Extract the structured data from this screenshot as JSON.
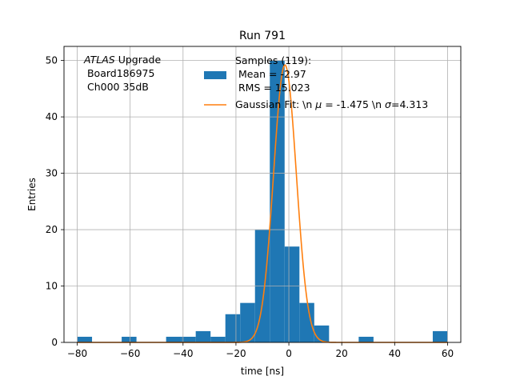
{
  "chart_data": {
    "type": "bar",
    "title": "Run 791",
    "xlabel": "time [ns]",
    "ylabel": "Entries",
    "xlim": [
      -85,
      65
    ],
    "ylim": [
      0,
      52.5
    ],
    "xticks": [
      -80,
      -60,
      -40,
      -20,
      0,
      20,
      40,
      60
    ],
    "yticks": [
      0,
      10,
      20,
      30,
      40,
      50
    ],
    "grid": true,
    "legend_position": "top-right",
    "histogram": {
      "name": "Samples (119):\n Mean = -2.97\n RMS = 15.023",
      "color": "#1f77b4",
      "bin_width": 5.6,
      "bins": [
        {
          "x0": -80,
          "count": 1
        },
        {
          "x0": -63.2,
          "count": 1
        },
        {
          "x0": -46.4,
          "count": 1
        },
        {
          "x0": -40.8,
          "count": 1
        },
        {
          "x0": -35.2,
          "count": 2
        },
        {
          "x0": -29.6,
          "count": 1
        },
        {
          "x0": -24.0,
          "count": 5
        },
        {
          "x0": -18.4,
          "count": 7
        },
        {
          "x0": -12.8,
          "count": 20
        },
        {
          "x0": -7.2,
          "count": 50
        },
        {
          "x0": -1.6,
          "count": 17
        },
        {
          "x0": 4.0,
          "count": 7
        },
        {
          "x0": 9.6,
          "count": 3
        },
        {
          "x0": 26.4,
          "count": 1
        },
        {
          "x0": 54.4,
          "count": 2
        }
      ]
    },
    "fit": {
      "name": "Gaussian Fit: \\n $\\mu$ = -1.475 \\n $\\sigma$=4.313",
      "color": "#ff7f0e",
      "mu": -1.475,
      "sigma": 4.313,
      "amplitude": 49.2
    }
  },
  "annotation": {
    "atlas": "ATLAS",
    "upgrade": " Upgrade",
    "line2": " Board186975",
    "line3": " Ch000 35dB"
  },
  "legend": {
    "samples_line1": "Samples (119):",
    "samples_line2": " Mean = -2.97",
    "samples_line3": " RMS = 15.023",
    "fit_label_pre": "Gaussian Fit: \\n ",
    "fit_mu_sym": "μ",
    "fit_mid": " = -1.475 \\n ",
    "fit_sigma_sym": "σ",
    "fit_post": "=4.313"
  }
}
